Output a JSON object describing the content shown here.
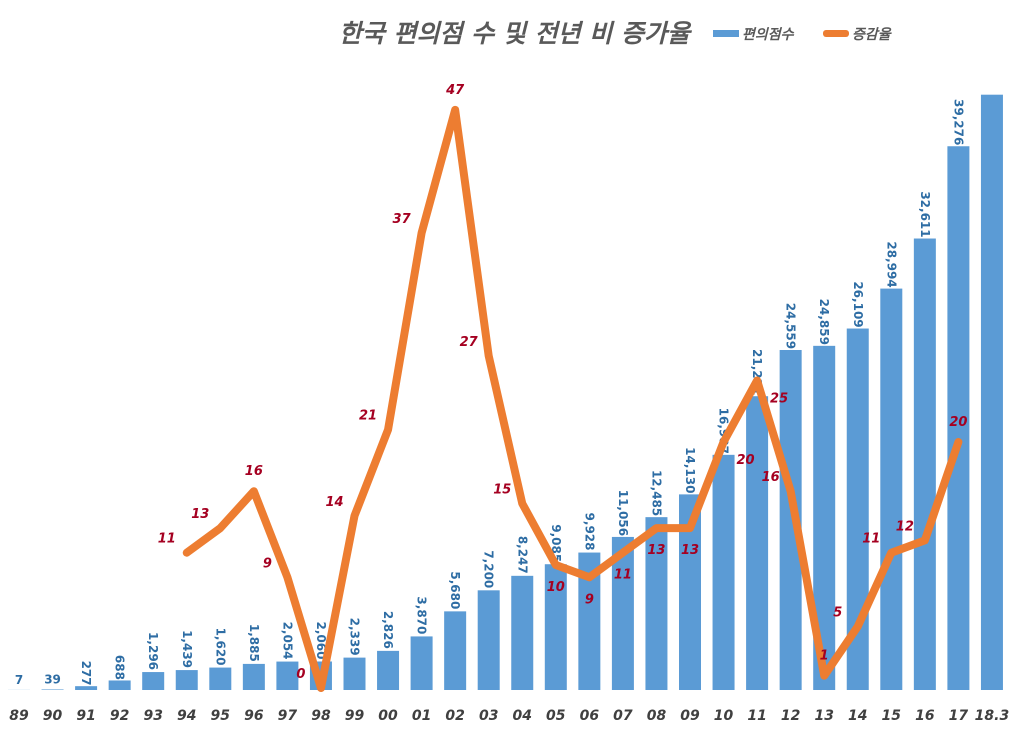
{
  "chart_data": {
    "type": "bar+line",
    "title": "한국 편의점 수 및 전년 비 증가율",
    "legend_position": "top-right",
    "grid": false,
    "categories": [
      "89",
      "90",
      "91",
      "92",
      "93",
      "94",
      "95",
      "96",
      "97",
      "98",
      "99",
      "00",
      "01",
      "02",
      "03",
      "04",
      "05",
      "06",
      "07",
      "08",
      "09",
      "10",
      "11",
      "12",
      "13",
      "14",
      "15",
      "16",
      "17",
      "18.3"
    ],
    "series": [
      {
        "name": "편의점수",
        "type": "bar",
        "color": "#5B9BD5",
        "values": [
          7,
          39,
          277,
          688,
          1296,
          1439,
          1620,
          1885,
          2054,
          2060,
          2339,
          2826,
          3870,
          5680,
          7200,
          8247,
          9085,
          9928,
          11056,
          12485,
          14130,
          16987,
          21221,
          24559,
          24859,
          26109,
          28994,
          32611,
          39276,
          43000
        ],
        "labels": [
          "7",
          "39",
          "277",
          "688",
          "1,296",
          "1,439",
          "1,620",
          "1,885",
          "2,054",
          "2,060",
          "2,339",
          "2,826",
          "3,870",
          "5,680",
          "7,200",
          "8,247",
          "9,085",
          "9,928",
          "11,056",
          "12,485",
          "14,130",
          "16,987",
          "21,221",
          "24,559",
          "24,859",
          "26,109",
          "28,994",
          "32,611",
          "39,276",
          ""
        ],
        "ylim": [
          0,
          45000
        ]
      },
      {
        "name": "증감율",
        "type": "line",
        "color": "#ED7D31",
        "values": [
          null,
          null,
          null,
          null,
          null,
          11,
          13,
          16,
          9,
          0,
          14,
          21,
          37,
          47,
          27,
          15,
          10,
          9,
          11,
          13,
          13,
          20,
          25,
          16,
          1,
          5,
          11,
          12,
          20,
          null
        ],
        "ylim": [
          0,
          50
        ]
      }
    ]
  }
}
